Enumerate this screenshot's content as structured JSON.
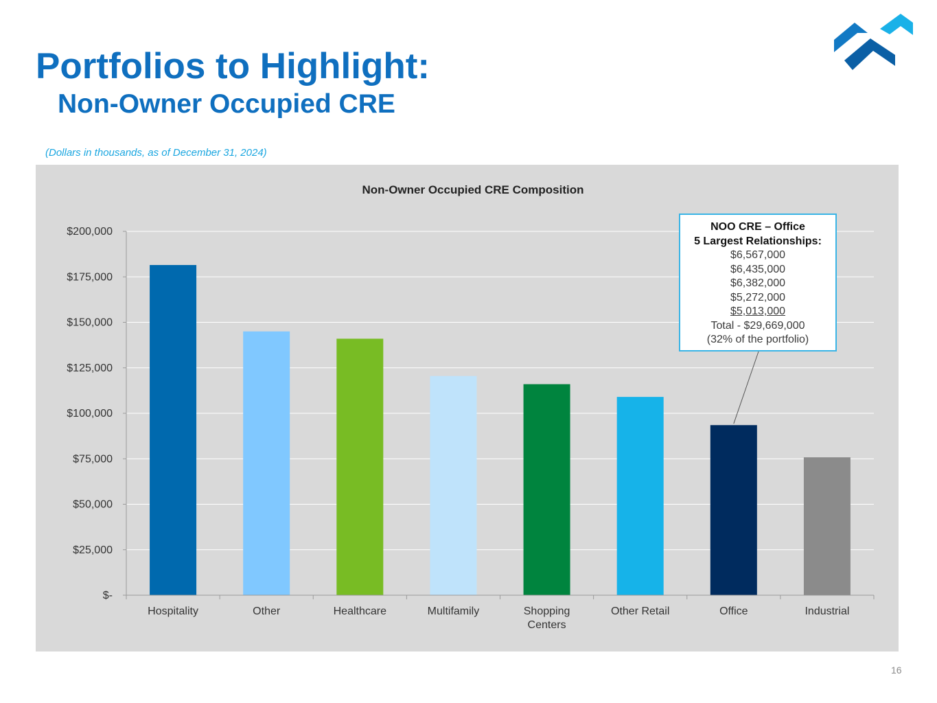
{
  "slide": {
    "title": "Portfolios to Highlight:",
    "subtitle": "Non-Owner Occupied CRE",
    "note": "(Dollars in thousands, as of December 31, 2024)",
    "page_number": "16"
  },
  "colors": {
    "title": "#0f6fbf",
    "note": "#1aa6e0",
    "panel_background": "#d9d9d9",
    "callout_border": "#39b4e6",
    "logo_light": "#1ab1e8",
    "logo_mid": "#1279c4",
    "logo_dark": "#0b5fa5"
  },
  "callout": {
    "heading": "NOO CRE – Office",
    "subheading": "5 Largest Relationships:",
    "amounts": [
      "$6,567,000",
      "$6,435,000",
      "$6,382,000",
      "$5,272,000",
      "$5,013,000"
    ],
    "total": "Total - $29,669,000",
    "share": "(32% of the portfolio)"
  },
  "chart_data": {
    "type": "bar",
    "title": "Non-Owner Occupied CRE Composition",
    "categories": [
      "Hospitality",
      "Other",
      "Healthcare",
      "Multifamily",
      "Shopping Centers",
      "Other Retail",
      "Office",
      "Industrial"
    ],
    "category_lines": [
      [
        "Hospitality"
      ],
      [
        "Other"
      ],
      [
        "Healthcare"
      ],
      [
        "Multifamily"
      ],
      [
        "Shopping",
        "Centers"
      ],
      [
        "Other Retail"
      ],
      [
        "Office"
      ],
      [
        "Industrial"
      ]
    ],
    "values": [
      181500,
      145000,
      141000,
      120500,
      116000,
      109000,
      93500,
      75800
    ],
    "bar_colors": [
      "#0069ae",
      "#80c8ff",
      "#78bc24",
      "#bfe3fb",
      "#00843e",
      "#16b3e9",
      "#002b5e",
      "#8b8b8b"
    ],
    "ylim": [
      0,
      200000
    ],
    "yticks": [
      0,
      25000,
      50000,
      75000,
      100000,
      125000,
      150000,
      175000,
      200000
    ],
    "ytick_labels": [
      "$-",
      "$25,000",
      "$50,000",
      "$75,000",
      "$100,000",
      "$125,000",
      "$150,000",
      "$175,000",
      "$200,000"
    ],
    "xlabel": "",
    "ylabel": "",
    "grid": true,
    "legend": "none",
    "annotation_target": "Office"
  }
}
